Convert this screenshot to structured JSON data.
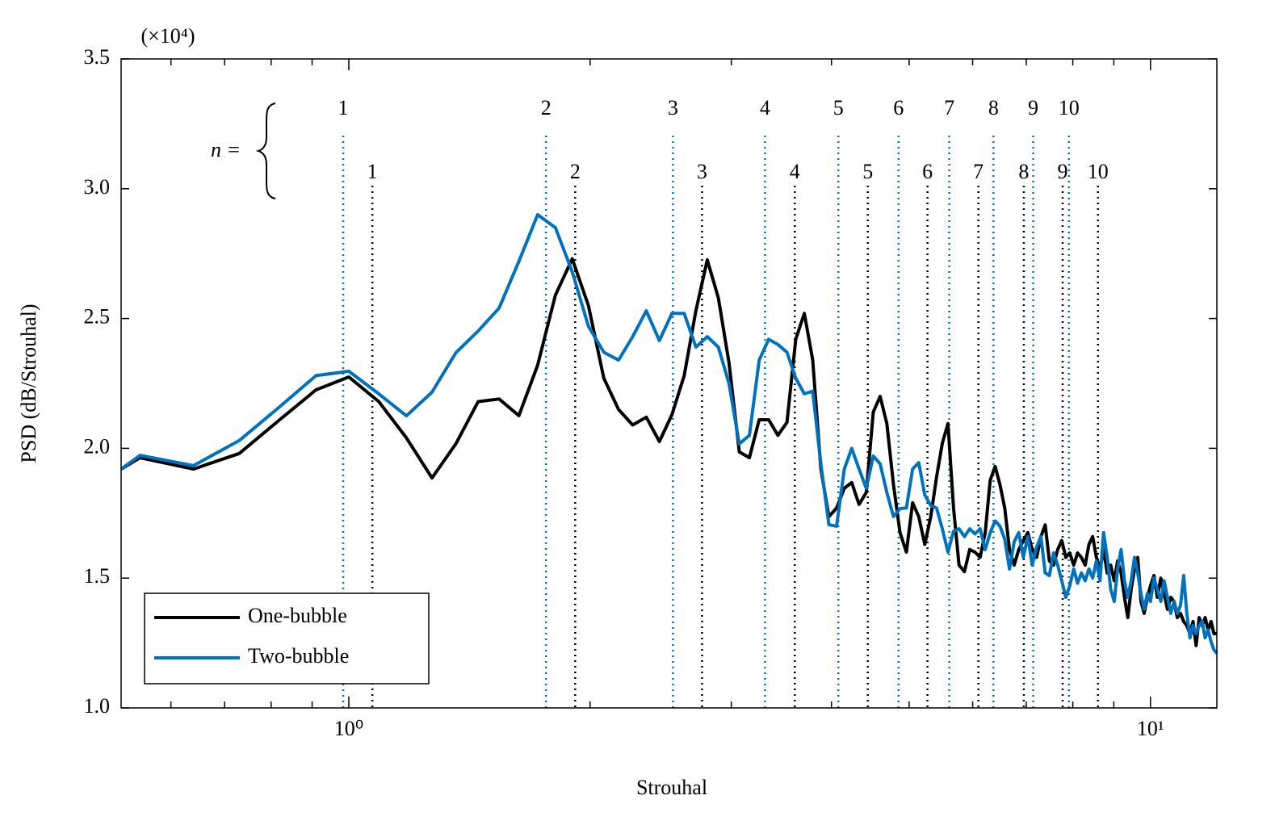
{
  "chart_data": {
    "type": "line",
    "xlabel": "Strouhal",
    "ylabel": "PSD (dB/Strouhal)",
    "y_multiplier": "(×10⁴)",
    "annotation": "n =",
    "xscale": "log",
    "xlim": [
      0.52,
      12.1
    ],
    "ylim": [
      1.0,
      3.5
    ],
    "xticks": [
      {
        "value": 1,
        "label": "10⁰"
      },
      {
        "value": 10,
        "label": "10¹"
      }
    ],
    "xminor": [
      0.6,
      0.7,
      0.8,
      0.9,
      2,
      3,
      4,
      5,
      6,
      7,
      8,
      9
    ],
    "yticks": [
      {
        "value": 1,
        "label": "1.0"
      },
      1.5,
      {
        "value": 2,
        "label": "2.0"
      },
      2.5,
      {
        "value": 3,
        "label": "3.0"
      },
      3.5
    ],
    "legend": "lower left",
    "x": [
      0.52,
      0.549,
      0.64,
      0.73,
      0.82,
      0.91,
      1.0,
      1.09,
      1.18,
      1.27,
      1.36,
      1.45,
      1.54,
      1.63,
      1.72,
      1.81,
      1.9,
      1.99,
      2.08,
      2.17,
      2.26,
      2.35,
      2.44,
      2.53,
      2.62,
      2.71,
      2.8,
      2.89,
      2.98,
      3.07,
      3.16,
      3.25,
      3.34,
      3.43,
      3.52,
      3.61,
      3.7,
      3.79,
      3.88,
      3.97,
      4.06,
      4.15,
      4.24,
      4.33,
      4.42,
      4.51,
      4.6,
      4.69,
      4.78,
      4.87,
      4.96,
      5.05,
      5.14,
      5.23,
      5.32,
      5.41,
      5.5,
      5.59,
      5.68,
      5.77,
      5.86,
      5.95,
      6.04,
      6.13,
      6.22,
      6.31,
      6.4,
      6.49,
      6.58,
      6.67,
      6.76,
      6.85,
      6.94,
      7.03,
      7.12,
      7.21,
      7.3,
      7.39,
      7.48,
      7.57,
      7.66,
      7.75,
      7.84,
      7.93,
      8.02,
      8.11,
      8.2,
      8.29,
      8.38,
      8.47,
      8.56,
      8.65,
      8.74,
      8.83,
      8.92,
      9.01,
      9.1,
      9.19,
      9.28,
      9.37,
      9.46,
      9.55,
      9.64,
      9.73,
      9.82,
      9.91,
      10.0,
      10.1,
      10.2,
      10.3,
      10.4,
      10.5,
      10.6,
      10.7,
      10.8,
      10.9,
      11.0,
      11.1,
      11.2,
      11.3,
      11.4,
      11.5,
      11.6,
      11.7,
      11.8,
      11.9,
      12.0,
      12.1
    ],
    "series": [
      {
        "name": "One-bubble",
        "color": "#000000",
        "values": [
          1.92,
          1.964,
          1.92,
          1.98,
          2.11,
          2.225,
          2.275,
          2.18,
          2.04,
          1.886,
          2.017,
          2.18,
          2.19,
          2.126,
          2.32,
          2.59,
          2.73,
          2.55,
          2.27,
          2.15,
          2.09,
          2.12,
          2.026,
          2.13,
          2.28,
          2.53,
          2.726,
          2.58,
          2.33,
          1.986,
          1.964,
          2.11,
          2.11,
          2.05,
          2.1,
          2.42,
          2.52,
          2.34,
          1.92,
          1.737,
          1.77,
          1.846,
          1.868,
          1.784,
          1.83,
          2.14,
          2.2,
          2.095,
          1.86,
          1.675,
          1.6,
          1.79,
          1.737,
          1.63,
          1.737,
          1.89,
          2.02,
          2.095,
          1.77,
          1.55,
          1.525,
          1.61,
          1.6,
          1.58,
          1.675,
          1.877,
          1.93,
          1.86,
          1.77,
          1.61,
          1.55,
          1.61,
          1.645,
          1.675,
          1.61,
          1.58,
          1.66,
          1.705,
          1.566,
          1.55,
          1.61,
          1.645,
          1.58,
          1.597,
          1.55,
          1.597,
          1.58,
          1.55,
          1.63,
          1.66,
          1.58,
          1.535,
          1.61,
          1.52,
          1.55,
          1.49,
          1.566,
          1.52,
          1.426,
          1.348,
          1.457,
          1.535,
          1.58,
          1.41,
          1.364,
          1.426,
          1.47,
          1.51,
          1.426,
          1.5,
          1.44,
          1.38,
          1.426,
          1.41,
          1.348,
          1.364,
          1.333,
          1.317,
          1.286,
          1.333,
          1.24,
          1.348,
          1.317,
          1.348,
          1.3,
          1.333,
          1.286,
          1.286
        ]
      },
      {
        "name": "Two-bubble",
        "color": "#0072bd",
        "values": [
          1.92,
          1.973,
          1.933,
          2.03,
          2.16,
          2.28,
          2.297,
          2.21,
          2.125,
          2.216,
          2.368,
          2.452,
          2.54,
          2.72,
          2.9,
          2.85,
          2.68,
          2.47,
          2.37,
          2.34,
          2.43,
          2.53,
          2.415,
          2.52,
          2.52,
          2.39,
          2.43,
          2.39,
          2.25,
          2.017,
          2.05,
          2.34,
          2.42,
          2.4,
          2.37,
          2.27,
          2.21,
          2.22,
          1.94,
          1.706,
          1.7,
          1.92,
          2.0,
          1.92,
          1.846,
          1.97,
          1.94,
          1.83,
          1.737,
          1.768,
          1.77,
          1.92,
          1.945,
          1.82,
          1.78,
          1.77,
          1.69,
          1.6,
          1.68,
          1.69,
          1.66,
          1.69,
          1.67,
          1.69,
          1.61,
          1.675,
          1.72,
          1.7,
          1.65,
          1.535,
          1.64,
          1.675,
          1.58,
          1.66,
          1.55,
          1.62,
          1.66,
          1.52,
          1.51,
          1.597,
          1.55,
          1.49,
          1.426,
          1.47,
          1.535,
          1.48,
          1.52,
          1.49,
          1.535,
          1.5,
          1.566,
          1.49,
          1.675,
          1.58,
          1.457,
          1.41,
          1.535,
          1.61,
          1.49,
          1.426,
          1.49,
          1.58,
          1.52,
          1.44,
          1.38,
          1.44,
          1.41,
          1.5,
          1.457,
          1.41,
          1.49,
          1.426,
          1.364,
          1.41,
          1.364,
          1.395,
          1.51,
          1.364,
          1.27,
          1.317,
          1.286,
          1.317,
          1.333,
          1.27,
          1.3,
          1.255,
          1.224,
          1.21
        ]
      }
    ],
    "mode_lines": [
      {
        "color": "#0072bd",
        "modes": [
          {
            "n": 1,
            "x": 0.984
          },
          {
            "n": 2,
            "x": 1.762
          },
          {
            "n": 3,
            "x": 2.537
          },
          {
            "n": 4,
            "x": 3.305
          },
          {
            "n": 5,
            "x": 4.08
          },
          {
            "n": 6,
            "x": 4.85
          },
          {
            "n": 7,
            "x": 5.61
          },
          {
            "n": 8,
            "x": 6.37
          },
          {
            "n": 9,
            "x": 7.14
          },
          {
            "n": 10,
            "x": 7.91
          }
        ]
      },
      {
        "color": "#000000",
        "modes": [
          {
            "n": 1,
            "x": 1.07
          },
          {
            "n": 2,
            "x": 1.916
          },
          {
            "n": 3,
            "x": 2.758
          },
          {
            "n": 4,
            "x": 3.6
          },
          {
            "n": 5,
            "x": 4.44
          },
          {
            "n": 6,
            "x": 5.27
          },
          {
            "n": 7,
            "x": 6.1
          },
          {
            "n": 8,
            "x": 6.95
          },
          {
            "n": 9,
            "x": 7.77
          },
          {
            "n": 10,
            "x": 8.6
          }
        ]
      }
    ]
  }
}
